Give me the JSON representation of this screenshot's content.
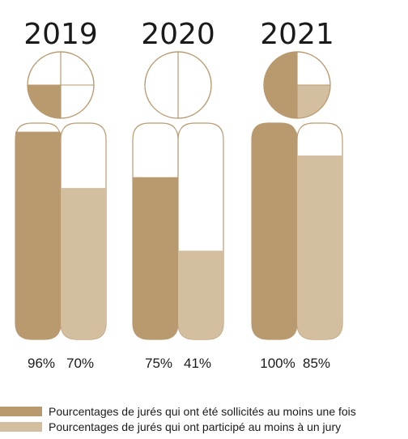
{
  "chart_data": {
    "type": "bar",
    "categories": [
      "2019",
      "2020",
      "2021"
    ],
    "series": [
      {
        "name": "Pourcentages de jurés qui ont été sollicités au moins une fois",
        "values": [
          96,
          75,
          100
        ],
        "labels": [
          "96%",
          "75%",
          "100%"
        ],
        "color": "#B9996E"
      },
      {
        "name": "Pourcentages de jurés qui ont participé au moins à un jury",
        "values": [
          70,
          41,
          85
        ],
        "labels": [
          "70%",
          "41%",
          "85%"
        ],
        "color": "#D3BEA0"
      }
    ],
    "ylim": [
      0,
      100
    ]
  },
  "colors": {
    "outline": "#B9996E",
    "background": "#ffffff",
    "text": "#1a1a1a"
  }
}
